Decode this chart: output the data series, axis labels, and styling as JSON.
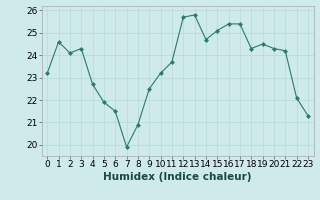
{
  "x": [
    0,
    1,
    2,
    3,
    4,
    5,
    6,
    7,
    8,
    9,
    10,
    11,
    12,
    13,
    14,
    15,
    16,
    17,
    18,
    19,
    20,
    21,
    22,
    23
  ],
  "y": [
    23.2,
    24.6,
    24.1,
    24.3,
    22.7,
    21.9,
    21.5,
    19.9,
    20.9,
    22.5,
    23.2,
    23.7,
    25.7,
    25.8,
    24.7,
    25.1,
    25.4,
    25.4,
    24.3,
    24.5,
    24.3,
    24.2,
    22.1,
    21.3
  ],
  "xlabel": "Humidex (Indice chaleur)",
  "ylim": [
    19.5,
    26.2
  ],
  "xlim": [
    -0.5,
    23.5
  ],
  "yticks": [
    20,
    21,
    22,
    23,
    24,
    25,
    26
  ],
  "xticks": [
    0,
    1,
    2,
    3,
    4,
    5,
    6,
    7,
    8,
    9,
    10,
    11,
    12,
    13,
    14,
    15,
    16,
    17,
    18,
    19,
    20,
    21,
    22,
    23
  ],
  "line_color": "#2d7a6a",
  "marker_color": "#2d7a6a",
  "bg_color": "#ceeaea",
  "grid_color": "#b8d8d8",
  "axis_bg": "#ceeaea",
  "xlabel_fontsize": 7.5,
  "tick_fontsize": 6.5
}
